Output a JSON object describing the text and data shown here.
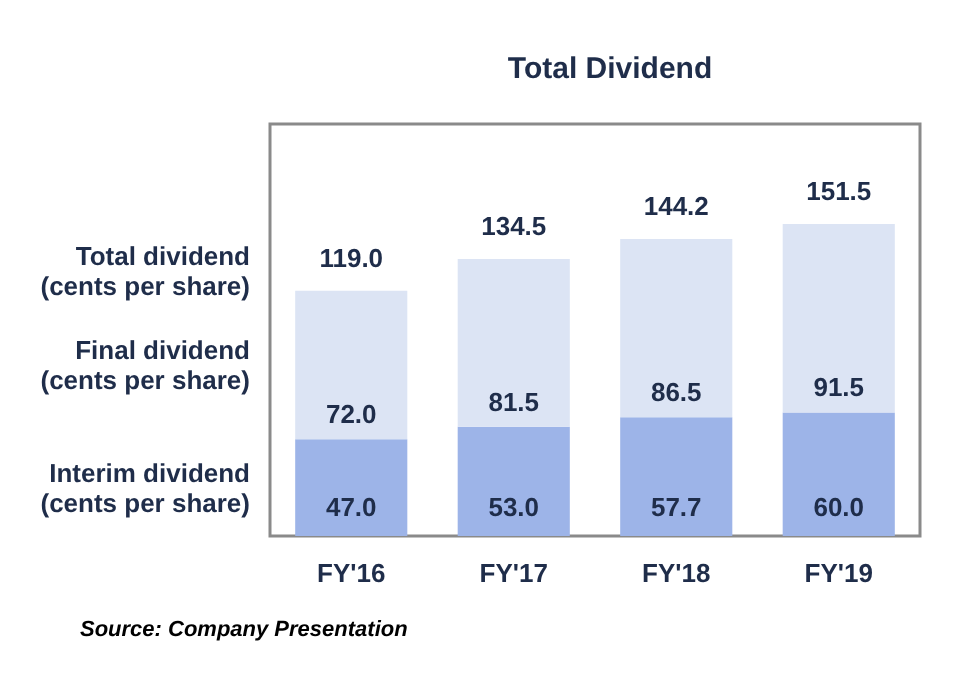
{
  "chart_data": {
    "type": "bar",
    "title": "Total Dividend",
    "categories": [
      "FY'16",
      "FY'17",
      "FY'18",
      "FY'19"
    ],
    "stacked": true,
    "series": [
      {
        "name": "Interim dividend\n(cents per share)",
        "color": "#9db4e8",
        "values": [
          47.0,
          53.0,
          57.7,
          60.0
        ],
        "value_labels": [
          "47.0",
          "53.0",
          "57.7",
          "60.0"
        ]
      },
      {
        "name": "Final dividend\n(cents per share)",
        "color": "#dce4f4",
        "values": [
          72.0,
          81.5,
          86.5,
          91.5
        ],
        "value_labels": [
          "72.0",
          "81.5",
          "86.5",
          "91.5"
        ]
      }
    ],
    "totals": [
      "119.0",
      "134.5",
      "144.2",
      "151.5"
    ],
    "ylim": [
      0,
      200
    ],
    "tick_labels": "x",
    "grid": false,
    "annotations": [
      "Total dividend\n(cents per share)",
      "Source: Company Presentation"
    ]
  }
}
